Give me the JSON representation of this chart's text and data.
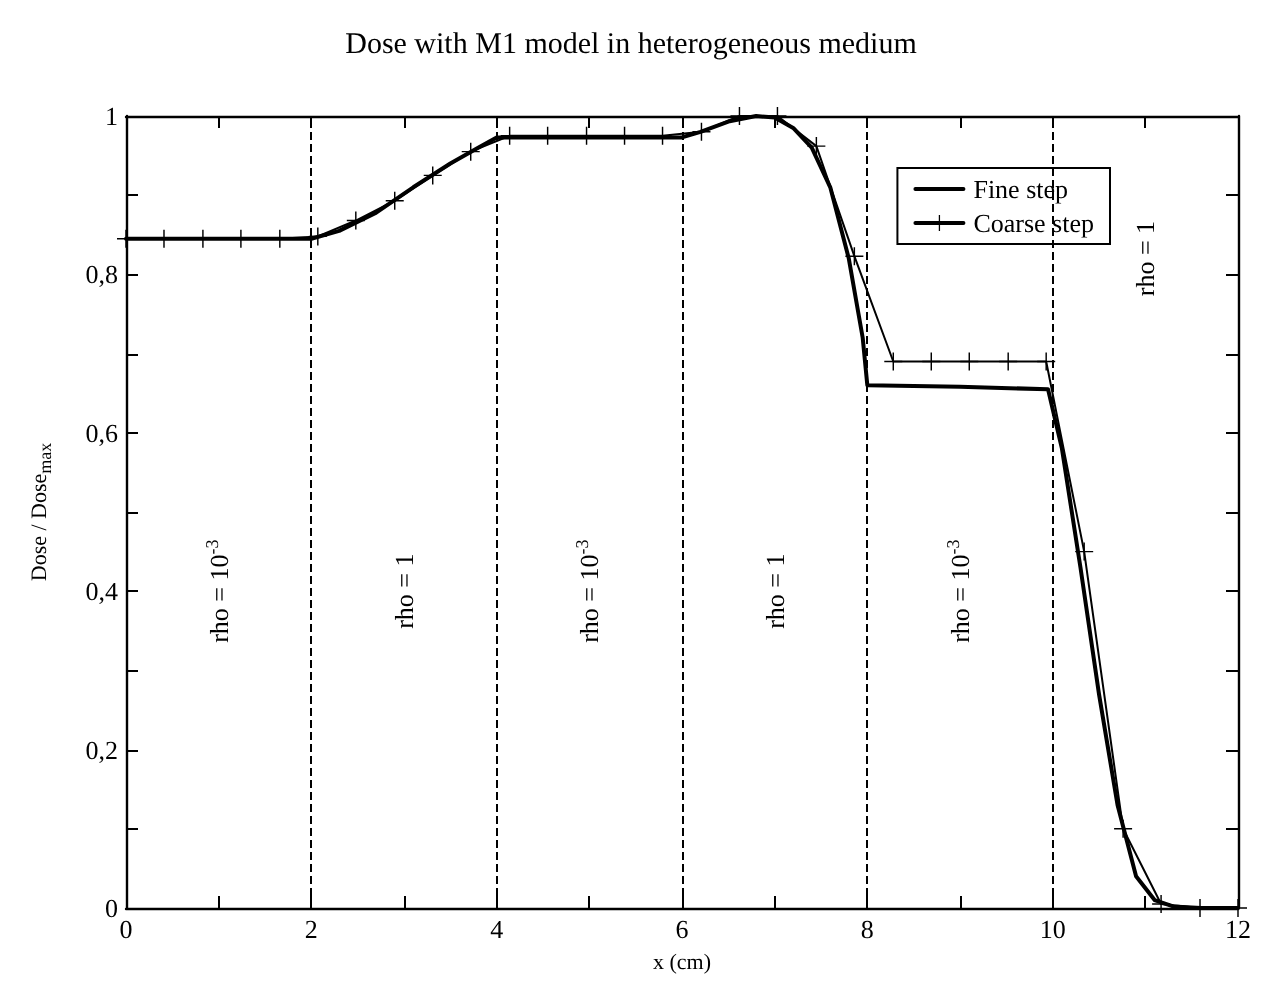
{
  "chart_data": {
    "type": "line",
    "title": "Dose with M1 model in heterogeneous medium",
    "xlabel": "x (cm)",
    "ylabel": "Dose / Dose$_{max}$",
    "xlim": [
      0,
      12
    ],
    "xticks": [
      0,
      {
        "value": 1,
        "label": null
      },
      2,
      {
        "value": 3,
        "label": null
      },
      4,
      {
        "value": 5,
        "label": null
      },
      6,
      {
        "value": 7,
        "label": null
      },
      8,
      {
        "value": 9,
        "label": null
      },
      10,
      {
        "value": 11,
        "label": null
      },
      12
    ],
    "ylim": [
      0,
      1
    ],
    "yticks": [
      0,
      {
        "value": 0.1,
        "label": null
      },
      {
        "value": 0.2,
        "label": "0,2"
      },
      {
        "value": 0.3,
        "label": null
      },
      {
        "value": 0.4,
        "label": "0,4"
      },
      {
        "value": 0.5,
        "label": null
      },
      {
        "value": 0.6,
        "label": "0,6"
      },
      {
        "value": 0.7,
        "label": null
      },
      {
        "value": 0.8,
        "label": "0,8"
      },
      {
        "value": 0.9,
        "label": null
      },
      1
    ],
    "grid": false,
    "legend": "top right",
    "series": [
      {
        "name": "Fine step",
        "color": "#000000",
        "marker": "none",
        "x": [
          0,
          2,
          2.3,
          2.7,
          3.1,
          3.5,
          3.8,
          4,
          6,
          6.2,
          6.5,
          6.8,
          7.0,
          7.2,
          7.4,
          7.6,
          7.8,
          7.95,
          8.0,
          9.0,
          9.95,
          10.1,
          10.3,
          10.5,
          10.7,
          10.9,
          11.1,
          11.3,
          11.6,
          12
        ],
        "values": [
          0.845,
          0.845,
          0.855,
          0.878,
          0.91,
          0.94,
          0.96,
          0.973,
          0.973,
          0.98,
          0.993,
          1.0,
          0.998,
          0.985,
          0.96,
          0.91,
          0.82,
          0.72,
          0.66,
          0.658,
          0.655,
          0.58,
          0.43,
          0.27,
          0.13,
          0.04,
          0.01,
          0.002,
          0,
          0
        ]
      },
      {
        "name": "Coarse step",
        "color": "#000000",
        "marker": "cross",
        "x": [
          0,
          0.41,
          0.83,
          1.24,
          1.66,
          2.07,
          2.48,
          2.9,
          3.31,
          3.72,
          4.14,
          4.55,
          4.97,
          5.38,
          5.79,
          6.21,
          6.62,
          7.03,
          7.45,
          7.86,
          8.28,
          8.69,
          9.1,
          9.52,
          9.93,
          10.34,
          10.76,
          11.17,
          11.59,
          12
        ],
        "values": [
          0.845,
          0.845,
          0.845,
          0.845,
          0.845,
          0.848,
          0.868,
          0.893,
          0.925,
          0.955,
          0.975,
          0.975,
          0.975,
          0.975,
          0.975,
          0.98,
          1.0,
          1.0,
          0.962,
          0.823,
          0.69,
          0.69,
          0.69,
          0.69,
          0.69,
          0.45,
          0.1,
          0.005,
          0,
          0
        ]
      }
    ],
    "ref_lines": [
      {
        "axis": "x",
        "value": 2,
        "line_style": "dashed",
        "color": "#000000"
      },
      {
        "axis": "x",
        "value": 4,
        "line_style": "dashed",
        "color": "#000000"
      },
      {
        "axis": "x",
        "value": 6,
        "line_style": "dashed",
        "color": "#000000"
      },
      {
        "axis": "x",
        "value": 8,
        "line_style": "dashed",
        "color": "#000000"
      },
      {
        "axis": "x",
        "value": 10,
        "line_style": "dashed",
        "color": "#000000"
      }
    ],
    "annotations": [
      "rho = 10$^{-3}$",
      "rho = 1",
      "rho = 10$^{-3}$",
      "rho = 1",
      "rho = 10$^{-3}$",
      "rho = 1"
    ]
  }
}
